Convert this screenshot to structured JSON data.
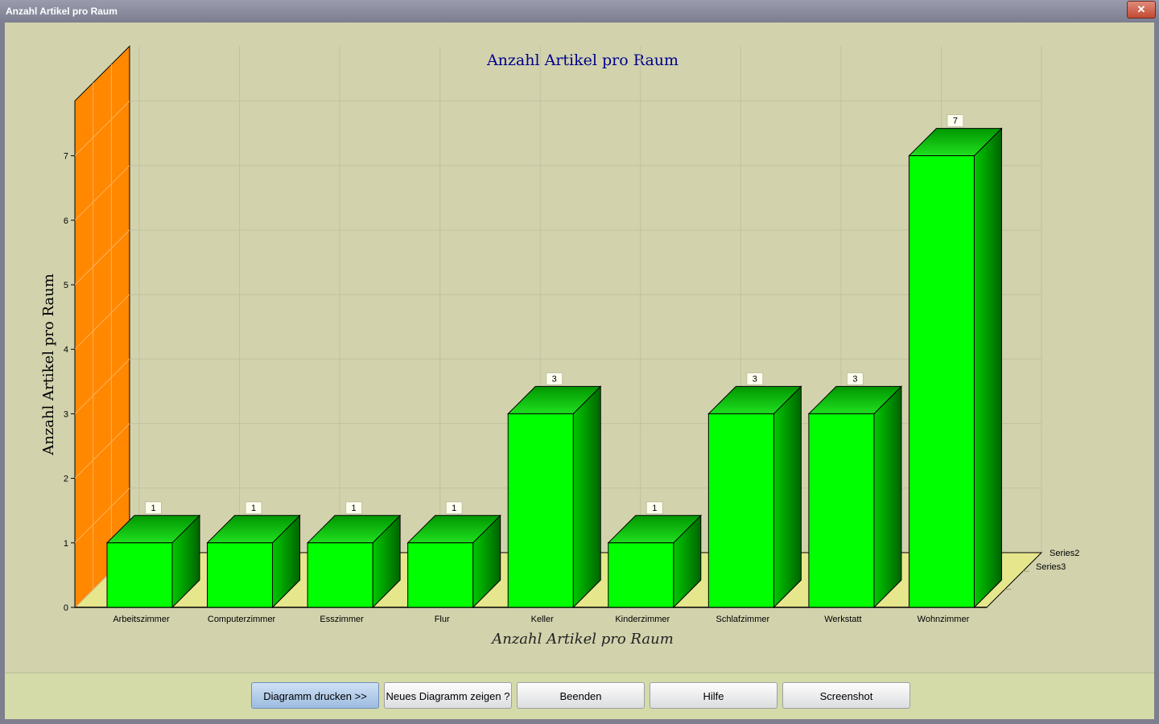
{
  "window": {
    "title": "Anzahl Artikel pro Raum",
    "close_label": "✕"
  },
  "chart_data": {
    "type": "bar",
    "title": "Anzahl Artikel pro Raum",
    "xlabel": "Anzahl Artikel pro Raum",
    "ylabel": "Anzahl Artikel pro Raum",
    "categories": [
      "Arbeitszimmer",
      "Computerzimmer",
      "Esszimmer",
      "Flur",
      "Keller",
      "Kinderzimmer",
      "Schlafzimmer",
      "Werkstatt",
      "Wohnzimmer"
    ],
    "series": [
      {
        "name": "Series3",
        "values": [
          1,
          1,
          1,
          1,
          3,
          1,
          3,
          3,
          7
        ]
      }
    ],
    "depth_series_labels": [
      "Series2",
      "Series3"
    ],
    "ylim": [
      0,
      7
    ],
    "yticks": [
      0,
      1,
      2,
      3,
      4,
      5,
      6,
      7
    ],
    "grid": true,
    "data_labels": true,
    "three_d": true,
    "colors": {
      "bar": "#00ff00",
      "wall": "#ff8800",
      "floor": "#e6e68c",
      "background": "#d2d3ad",
      "title": "#00008b"
    }
  },
  "buttons": {
    "print": "Diagramm drucken >>",
    "new_chart": "Neues Diagramm zeigen ?",
    "quit": "Beenden",
    "help": "Hilfe",
    "screenshot": "Screenshot"
  }
}
